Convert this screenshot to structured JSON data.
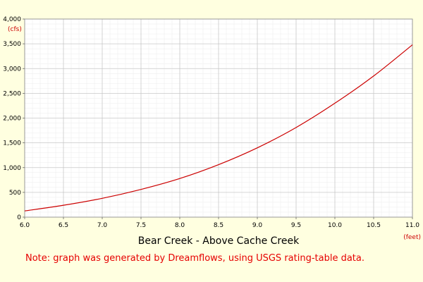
{
  "colors": {
    "background": "#ffffe0",
    "plot_background": "#ffffff",
    "grid_major": "#c8c8c8",
    "grid_minor": "#ececec",
    "line": "#cc0000",
    "unit_text": "#cc0000",
    "note_text": "#e60000"
  },
  "chart_data": {
    "type": "line",
    "title": "Bear Creek - Above Cache Creek",
    "xlabel": "(feet)",
    "ylabel": "(cfs)",
    "xlim": [
      6.0,
      11.0
    ],
    "ylim": [
      0,
      4000
    ],
    "grid": true,
    "x_ticks": [
      "6.0",
      "6.5",
      "7.0",
      "7.5",
      "8.0",
      "8.5",
      "9.0",
      "9.5",
      "10.0",
      "10.5",
      "11.0"
    ],
    "y_ticks": [
      "0",
      "500",
      "1,000",
      "1,500",
      "2,000",
      "2,500",
      "3,000",
      "3,500",
      "4,000"
    ],
    "series": [
      {
        "x": [
          6.0,
          6.5,
          7.0,
          7.5,
          8.0,
          8.5,
          9.0,
          9.5,
          10.0,
          10.5,
          11.0
        ],
        "y": [
          125,
          240,
          380,
          560,
          780,
          1060,
          1400,
          1810,
          2300,
          2850,
          3480
        ]
      }
    ]
  },
  "note": "Note: graph was generated by Dreamflows, using USGS rating-table data."
}
